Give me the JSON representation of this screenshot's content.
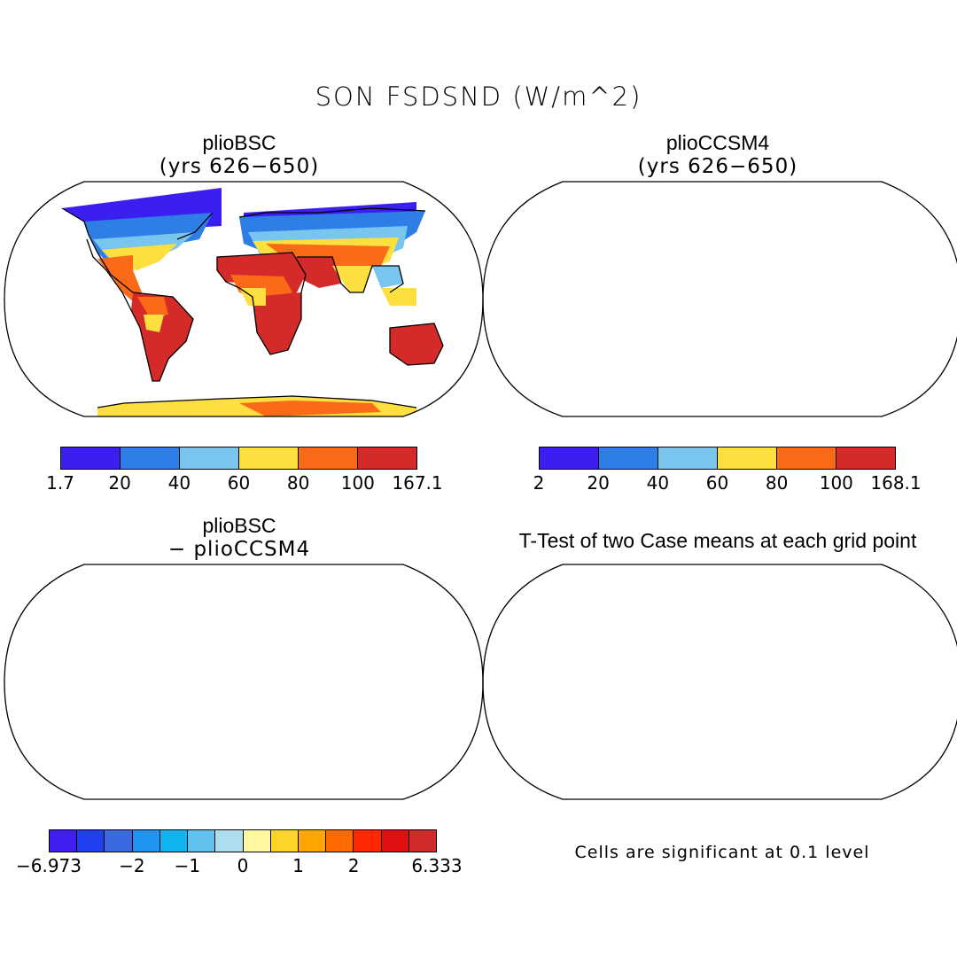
{
  "figure": {
    "title": "SON FSDSND (W/m^2)"
  },
  "panels": {
    "top_left": {
      "title": "plioBSC",
      "subtitle": "(yrs 626−650)"
    },
    "top_right": {
      "title": "plioCCSM4",
      "subtitle": "(yrs 626−650)"
    },
    "bottom_left": {
      "title": "plioBSC",
      "subtitle": "− plioCCSM4"
    },
    "bottom_right": {
      "title": "T-Test of two Case means at each grid point",
      "note": "Cells are significant at 0.1 level"
    }
  },
  "colorbars": {
    "top_left": {
      "colors": [
        "#3a1ff0",
        "#2e7ee6",
        "#78c6ee",
        "#fde040",
        "#fb6a18",
        "#d42a2a"
      ],
      "labels": [
        "1.7",
        "20",
        "40",
        "60",
        "80",
        "100",
        "167.1"
      ]
    },
    "top_right": {
      "colors": [
        "#3a1ff0",
        "#2e7ee6",
        "#78c6ee",
        "#fde040",
        "#fb6a18",
        "#d42a2a"
      ],
      "labels": [
        "2",
        "20",
        "40",
        "60",
        "80",
        "100",
        "168.1"
      ]
    },
    "bottom_left": {
      "colors": [
        "#4020f0",
        "#2040f0",
        "#3a6ae0",
        "#2094f0",
        "#10b4f0",
        "#60c0ee",
        "#aedcf0",
        "#fff8a0",
        "#ffd428",
        "#ffa600",
        "#ff6a00",
        "#ff2800",
        "#e01010",
        "#d02a2a"
      ],
      "labels": [
        "−6.973",
        "−2",
        "−1",
        "0",
        "1",
        "2",
        "6.333"
      ]
    }
  },
  "map_colors": {
    "ocean": "#ffffff",
    "ttest_significant": "#ff0000"
  }
}
